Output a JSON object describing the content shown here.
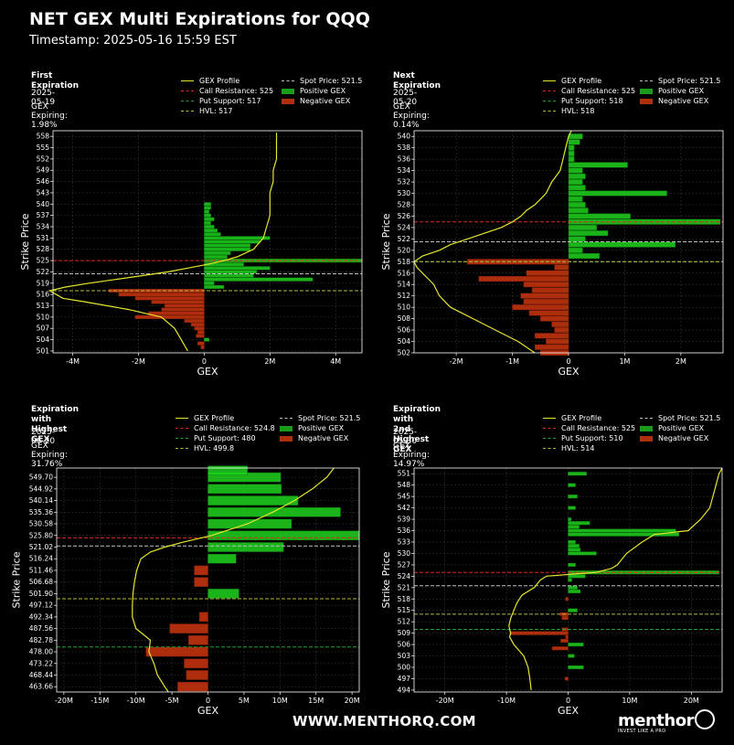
{
  "title": "NET GEX Multi Expirations for QQQ",
  "timestamp": "Timestamp: 2025-05-16 15:59 EST",
  "footer_url": "WWW.MENTHORQ.COM",
  "brand": {
    "name": "menthor",
    "tagline": "INVEST LIKE A PRO"
  },
  "colors": {
    "background": "#000000",
    "panel_bg": "#000000",
    "grid": "#333333",
    "gex_profile": "#e6e62e",
    "call_resistance": "#dd2a1f",
    "put_support": "#22a22e",
    "hvl": "#b8b83a",
    "spot_price": "#bfbfbf",
    "positive_gex": "#1fd31f",
    "negative_gex": "#d9380f"
  },
  "legend_labels": {
    "gex_profile": "GEX Profile",
    "positive_gex": "Positive GEX",
    "negative_gex": "Negative GEX"
  },
  "chart_data": [
    {
      "type": "bar",
      "orientation": "horizontal",
      "panel_title": "First Expiration",
      "date": "2025-05-19",
      "gex_expiring": "GEX Expiring: 1.98%",
      "legend": {
        "call_resistance": "Call Resistance: 525",
        "put_support": "Put Support: 517",
        "hvl": "HVL: 517",
        "spot_price": "Spot Price: 521.5"
      },
      "levels": {
        "call_resistance": 525,
        "put_support": 517,
        "hvl": 517,
        "spot_price": 521.5
      },
      "xlabel": "GEX",
      "ylabel": "Strike Price",
      "xlim": [
        -4.6,
        4.8
      ],
      "ylim": [
        500.5,
        559.5
      ],
      "xticks": [
        -4,
        -2,
        0,
        2,
        4
      ],
      "xtick_labels": [
        "-4M",
        "-2M",
        "0",
        "2M",
        "4M"
      ],
      "yticks": [
        501,
        504,
        507,
        510,
        513,
        516,
        519,
        522,
        525,
        528,
        531,
        534,
        537,
        540,
        543,
        546,
        549,
        552,
        555,
        558
      ],
      "ytick_labels": [
        "501",
        "504",
        "507",
        "510",
        "513",
        "516",
        "519",
        "522",
        "525",
        "528",
        "531",
        "534",
        "537",
        "540",
        "543",
        "546",
        "549",
        "552",
        "555",
        "558"
      ],
      "bar_height": 0.9,
      "strikes": [
        502,
        503,
        504,
        505,
        506,
        507,
        508,
        509,
        510,
        511,
        512,
        513,
        514,
        515,
        516,
        517,
        518,
        519,
        520,
        521,
        522,
        523,
        524,
        525,
        526,
        527,
        528,
        529,
        530,
        531,
        532,
        533,
        534,
        535,
        536,
        537,
        538,
        539,
        540
      ],
      "values": [
        -0.1,
        -0.2,
        0.15,
        -0.25,
        -0.2,
        -0.3,
        -0.4,
        -0.6,
        -2.1,
        -1.7,
        -1.3,
        -1.2,
        -1.6,
        -2.1,
        -2.6,
        -2.9,
        0.6,
        0.3,
        3.3,
        1.5,
        1.6,
        2.0,
        1.2,
        4.8,
        0.7,
        0.8,
        1.4,
        1.4,
        1.7,
        2.0,
        0.5,
        0.4,
        0.3,
        0.2,
        0.3,
        0.2,
        0.15,
        0.2,
        0.2
      ],
      "profile": {
        "strikes": [
          501,
          504,
          507,
          510,
          512,
          514,
          515,
          516,
          517,
          518,
          519,
          520,
          521,
          522,
          523,
          524,
          525,
          526,
          528,
          531,
          534,
          537,
          540,
          543,
          546,
          549,
          552,
          555,
          559
        ],
        "values": [
          -0.5,
          -0.7,
          -0.9,
          -1.3,
          -2.3,
          -3.6,
          -4.3,
          -4.5,
          -4.7,
          -4.2,
          -3.5,
          -2.7,
          -1.9,
          -1.1,
          -0.5,
          0.1,
          0.6,
          1.0,
          1.5,
          1.8,
          1.9,
          2.0,
          2.0,
          2.0,
          2.1,
          2.1,
          2.2,
          2.2,
          2.2
        ]
      }
    },
    {
      "type": "bar",
      "orientation": "horizontal",
      "panel_title": "Next Expiration",
      "date": "2025-05-20",
      "gex_expiring": "GEX Expiring: 0.14%",
      "legend": {
        "call_resistance": "Call Resistance: 525",
        "put_support": "Put Support: 518",
        "hvl": "HVL: 518",
        "spot_price": "Spot Price: 521.5"
      },
      "levels": {
        "call_resistance": 525,
        "put_support": 518,
        "hvl": 518,
        "spot_price": 521.5
      },
      "xlabel": "GEX",
      "ylabel": "Strike Price",
      "xlim": [
        -2.75,
        2.75
      ],
      "ylim": [
        502,
        541
      ],
      "xticks": [
        -2,
        -1,
        0,
        1,
        2
      ],
      "xtick_labels": [
        "-2M",
        "-1M",
        "0",
        "1M",
        "2M"
      ],
      "yticks": [
        502,
        504,
        506,
        508,
        510,
        512,
        514,
        516,
        518,
        520,
        522,
        524,
        526,
        528,
        530,
        532,
        534,
        536,
        538,
        540
      ],
      "ytick_labels": [
        "502",
        "504",
        "506",
        "508",
        "510",
        "512",
        "514",
        "516",
        "518",
        "520",
        "522",
        "524",
        "526",
        "528",
        "530",
        "532",
        "534",
        "536",
        "538",
        "540"
      ],
      "bar_height": 0.9,
      "strikes": [
        502,
        503,
        504,
        505,
        506,
        507,
        508,
        509,
        510,
        511,
        512,
        513,
        514,
        515,
        516,
        517,
        518,
        519,
        520,
        521,
        522,
        523,
        524,
        525,
        526,
        527,
        528,
        529,
        530,
        531,
        532,
        533,
        534,
        535,
        536,
        537,
        538,
        539,
        540
      ],
      "values": [
        -0.5,
        -0.6,
        -0.4,
        -0.6,
        -0.25,
        -0.3,
        -0.5,
        -0.7,
        -1.0,
        -0.8,
        -0.85,
        -0.65,
        -0.8,
        -1.6,
        -0.75,
        -0.25,
        -1.8,
        0.55,
        0.25,
        1.9,
        0.3,
        0.7,
        0.5,
        2.7,
        1.1,
        0.35,
        0.3,
        0.25,
        1.75,
        0.3,
        0.25,
        0.3,
        0.25,
        1.05,
        0.1,
        0.1,
        0.1,
        0.2,
        0.25
      ],
      "profile": {
        "strikes": [
          502,
          504,
          506,
          508,
          510,
          512,
          514,
          515,
          516,
          517,
          518,
          519,
          520,
          521,
          522,
          523,
          524,
          525,
          526,
          527,
          528,
          529,
          530,
          532,
          534,
          536,
          538,
          540,
          541
        ],
        "values": [
          -0.6,
          -0.9,
          -1.3,
          -1.7,
          -2.1,
          -2.3,
          -2.4,
          -2.5,
          -2.6,
          -2.7,
          -2.75,
          -2.6,
          -2.3,
          -2.1,
          -1.8,
          -1.5,
          -1.2,
          -1.0,
          -0.85,
          -0.75,
          -0.6,
          -0.5,
          -0.4,
          -0.3,
          -0.15,
          -0.1,
          -0.05,
          0.0,
          0.05
        ]
      }
    },
    {
      "type": "bar",
      "orientation": "horizontal",
      "panel_title": "Expiration with\nHighest GEX",
      "date": "2025-06-20",
      "gex_expiring": "GEX Expiring: 31.76%",
      "legend": {
        "call_resistance": "Call Resistance: 524.8",
        "put_support": "Put Support: 480",
        "hvl": "HVL: 499.8",
        "spot_price": "Spot Price: 521.5"
      },
      "levels": {
        "call_resistance": 524.8,
        "put_support": 480,
        "hvl": 499.8,
        "spot_price": 521.5
      },
      "xlabel": "GEX",
      "ylabel": "Strike Price",
      "xlim": [
        -21.0,
        21.0
      ],
      "ylim": [
        461.5,
        553.5
      ],
      "xticks": [
        -20,
        -15,
        -10,
        -5,
        0,
        5,
        10,
        15,
        20
      ],
      "xtick_labels": [
        "-20M",
        "-15M",
        "-10M",
        "-5M",
        "0",
        "5M",
        "10M",
        "15M",
        "20M"
      ],
      "yticks": [
        463.66,
        468.44,
        473.22,
        478.0,
        482.78,
        487.56,
        492.34,
        497.12,
        501.9,
        506.68,
        511.46,
        516.24,
        521.02,
        525.8,
        530.58,
        535.36,
        540.14,
        544.92,
        549.7
      ],
      "ytick_labels": [
        "463.66",
        "468.44",
        "473.22",
        "478.00",
        "482.78",
        "487.56",
        "492.34",
        "497.12",
        "501.90",
        "506.68",
        "511.46",
        "516.24",
        "521.02",
        "525.80",
        "530.58",
        "535.36",
        "540.14",
        "544.92",
        "549.70"
      ],
      "bar_height": 3.8,
      "strikes": [
        463.66,
        468.44,
        473.22,
        478.0,
        482.78,
        487.56,
        492.34,
        497.12,
        501.9,
        506.68,
        511.46,
        516.24,
        521.02,
        525.8,
        530.58,
        535.36,
        540.14,
        544.92,
        549.7,
        552.5
      ],
      "values": [
        -4.2,
        -3.0,
        -3.3,
        -8.6,
        -2.7,
        -5.3,
        -1.2,
        0.0,
        4.3,
        -1.9,
        -1.9,
        3.9,
        10.5,
        21.0,
        11.6,
        18.4,
        12.5,
        10.2,
        10.1,
        5.5
      ],
      "profile": {
        "strikes": [
          461.5,
          463.66,
          468.44,
          473.22,
          478.0,
          482.78,
          487.56,
          492.34,
          497.12,
          501.9,
          506.68,
          511.46,
          516.24,
          519.0,
          521.02,
          523.0,
          525.8,
          530.58,
          535.36,
          540.14,
          544.92,
          549.7,
          553.5
        ],
        "values": [
          -5.5,
          -6.0,
          -7.0,
          -7.5,
          -8.2,
          -8.0,
          -10.0,
          -10.5,
          -10.5,
          -10.4,
          -10.2,
          -9.9,
          -9.3,
          -8.0,
          -6.0,
          -3.5,
          0.5,
          5.5,
          9.0,
          12.0,
          14.5,
          16.5,
          17.5
        ]
      }
    },
    {
      "type": "bar",
      "orientation": "horizontal",
      "panel_title": "Expiration with\n2nd Highest GEX",
      "date": "2025-05-30",
      "gex_expiring": "GEX Expiring: 14.97%",
      "legend": {
        "call_resistance": "Call Resistance: 525",
        "put_support": "Put Support: 510",
        "hvl": "HVL: 514",
        "spot_price": "Spot Price: 521.5"
      },
      "levels": {
        "call_resistance": 525,
        "put_support": 510,
        "hvl": 514,
        "spot_price": 521.5
      },
      "xlabel": "GEX",
      "ylabel": "Strike Price",
      "xlim": [
        -25.0,
        25.0
      ],
      "ylim": [
        493.5,
        552.5
      ],
      "xticks": [
        -20,
        -10,
        0,
        10,
        20
      ],
      "xtick_labels": [
        "-20M",
        "-10M",
        "0",
        "10M",
        "20M"
      ],
      "yticks": [
        494,
        497,
        500,
        503,
        506,
        509,
        512,
        515,
        518,
        521,
        524,
        527,
        530,
        533,
        536,
        539,
        542,
        545,
        548,
        551
      ],
      "ytick_labels": [
        "494",
        "497",
        "500",
        "503",
        "506",
        "509",
        "512",
        "515",
        "518",
        "521",
        "524",
        "527",
        "530",
        "533",
        "536",
        "539",
        "542",
        "545",
        "548",
        "551"
      ],
      "bar_height": 0.9,
      "strikes": [
        497,
        500,
        503,
        505,
        506,
        507,
        508,
        509,
        510,
        513,
        514,
        515,
        518,
        520,
        521,
        523,
        524,
        525,
        527,
        530,
        531,
        532,
        533,
        535,
        536,
        537,
        538,
        539,
        542,
        545,
        548,
        551
      ],
      "values": [
        -0.5,
        2.5,
        1.0,
        -2.6,
        2.5,
        -1.2,
        -0.4,
        -9.5,
        -1.0,
        -1.0,
        -1.3,
        1.5,
        -0.4,
        2.0,
        1.5,
        0.6,
        2.8,
        24.5,
        1.2,
        4.6,
        2.0,
        1.8,
        1.2,
        18.0,
        17.5,
        1.8,
        3.5,
        0.5,
        1.2,
        1.5,
        1.2,
        3.0
      ],
      "profile": {
        "strikes": [
          494,
          497,
          500,
          503,
          506,
          508,
          509,
          510,
          511,
          513,
          515,
          517,
          519,
          521,
          523,
          524,
          525,
          526,
          527,
          530,
          533,
          535,
          536,
          539,
          542,
          545,
          548,
          551,
          552.5
        ],
        "values": [
          -6.0,
          -6.2,
          -6.5,
          -7.2,
          -8.8,
          -9.5,
          -9.3,
          -9.5,
          -9.6,
          -9.3,
          -8.8,
          -8.3,
          -7.5,
          -5.5,
          -4.5,
          -3.5,
          4.5,
          7.0,
          8.0,
          9.5,
          12.0,
          14.0,
          19.5,
          21.5,
          23.0,
          23.5,
          24.0,
          24.5,
          25.0
        ]
      }
    }
  ]
}
